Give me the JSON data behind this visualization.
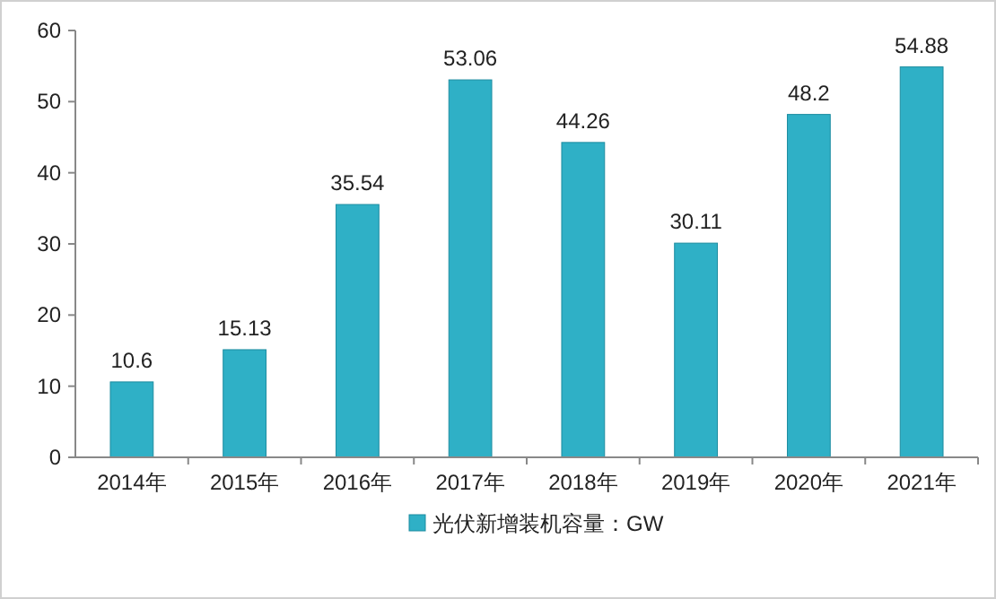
{
  "chart_data": {
    "type": "bar",
    "categories": [
      "2014年",
      "2015年",
      "2016年",
      "2017年",
      "2018年",
      "2019年",
      "2020年",
      "2021年"
    ],
    "series": [
      {
        "name": "光伏新增装机容量：GW",
        "color": "#2fb0c6",
        "values": [
          10.6,
          15.13,
          35.54,
          53.06,
          44.26,
          30.11,
          48.2,
          54.88
        ]
      }
    ],
    "ylim": [
      0,
      60
    ],
    "yticks": [
      0,
      10,
      20,
      30,
      40,
      50,
      60
    ],
    "data_labels": true,
    "legend": "bottom",
    "grid": false
  }
}
